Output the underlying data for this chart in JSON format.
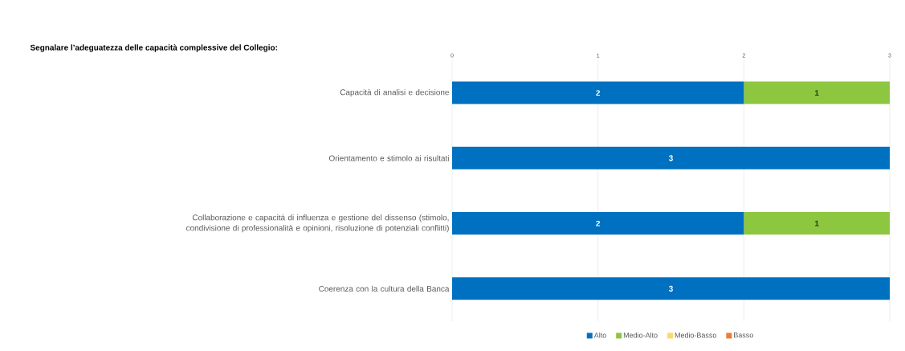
{
  "chart_data": {
    "type": "bar",
    "orientation": "horizontal",
    "stacked": true,
    "title": "Segnalare l’adeguatezza delle capacità complessive del Collegio:",
    "categories": [
      "Capacità di analisi e decisione",
      "Orientamento e stimolo ai risultati",
      "Collaborazione e capacità di influenza e gestione del dissenso (stimolo, condivisione di professionalità e opinioni, risoluzione di potenziali conflitti)",
      "Coerenza con la cultura della Banca"
    ],
    "series": [
      {
        "name": "Alto",
        "color": "#0070c0",
        "values": [
          2,
          3,
          2,
          3
        ],
        "value_labels": [
          "2",
          "3",
          "2",
          "3"
        ]
      },
      {
        "name": "Medio-Alto",
        "color": "#8dc63f",
        "values": [
          1,
          0,
          1,
          0
        ],
        "value_labels": [
          "1",
          null,
          "1",
          null
        ]
      },
      {
        "name": "Medio-Basso",
        "color": "#ffd966",
        "values": [
          0,
          0,
          0,
          0
        ]
      },
      {
        "name": "Basso",
        "color": "#ed7d31",
        "values": [
          0,
          0,
          0,
          0
        ]
      }
    ],
    "xlim": [
      0,
      3
    ],
    "xticks": [
      0,
      1,
      2,
      3
    ],
    "grid": "x",
    "legend": "bottom"
  }
}
